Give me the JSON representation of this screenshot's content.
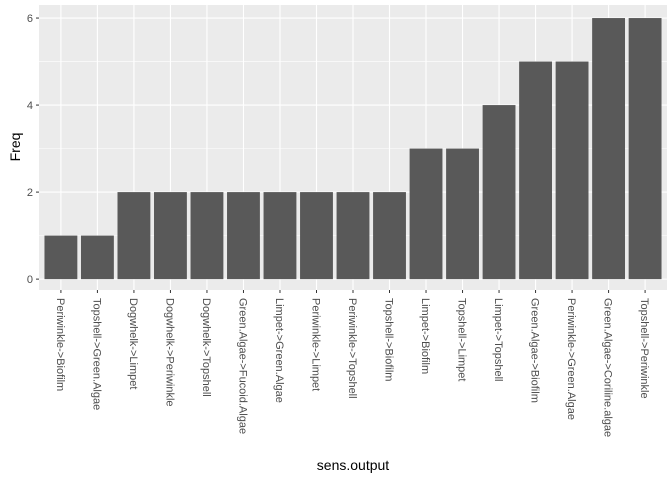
{
  "chart_data": {
    "type": "bar",
    "xlabel": "sens.output",
    "ylabel": "Freq",
    "ylim": [
      -0.25,
      6.3
    ],
    "yticks": [
      0,
      2,
      4,
      6
    ],
    "grid": true,
    "colors": {
      "panel": "#EBEBEB",
      "grid": "#FFFFFF",
      "bar": "#595959",
      "tick_text": "#4D4D4D",
      "tick_mark": "#333333"
    },
    "categories": [
      "Periwinkle->Biofilm",
      "Topshell->Green.Algae",
      "Dogwhelk->Limpet",
      "Dogwhelk->Periwinkle",
      "Dogwhelk->Topshell",
      "Green.Algae->Fucoid.Algae",
      "Limpet->Green.Algae",
      "Periwinkle->Limpet",
      "Periwinkle->Topshell",
      "Topshell->Biofilm",
      "Limpet->Biofilm",
      "Topshell->Limpet",
      "Limpet->Topshell",
      "Green.Algae->Biofilm",
      "Periwinkle->Green.Algae",
      "Green.Algae->Coriline.algae",
      "Topshell->Periwinkle"
    ],
    "values": [
      1,
      1,
      2,
      2,
      2,
      2,
      2,
      2,
      2,
      2,
      3,
      3,
      4,
      5,
      5,
      6,
      6
    ]
  }
}
